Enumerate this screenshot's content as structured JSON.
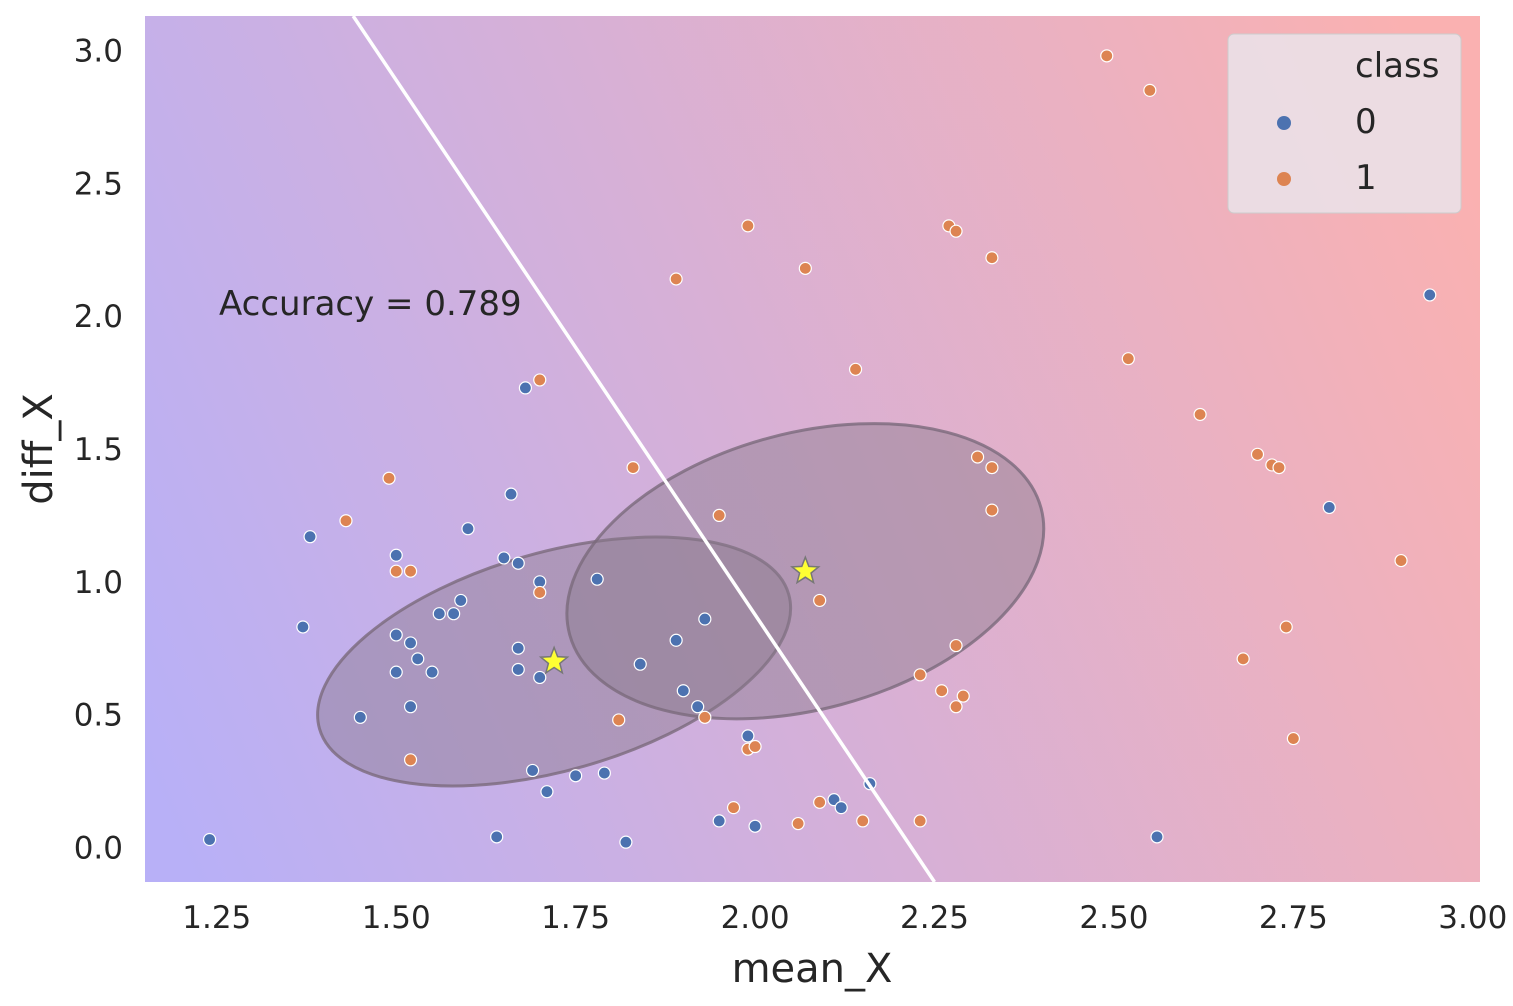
{
  "chart_data": {
    "type": "scatter",
    "xlabel": "mean_X",
    "ylabel": "diff_X",
    "xlim": [
      1.15,
      3.01
    ],
    "ylim": [
      -0.13,
      3.13
    ],
    "xticks": [
      "1.25",
      "1.50",
      "1.75",
      "2.00",
      "2.25",
      "2.50",
      "2.75",
      "3.00"
    ],
    "yticks": [
      "0.0",
      "0.5",
      "1.0",
      "1.5",
      "2.0",
      "2.5",
      "3.0"
    ],
    "grid": false,
    "background": {
      "left_color": "#b8b0f7",
      "right_color": "#fab1b1",
      "type": "diagonal-gradient"
    },
    "annotation": "Accuracy = 0.789",
    "decision_boundary": {
      "color": "#ffffff",
      "points": [
        [
          1.44,
          3.13
        ],
        [
          2.25,
          -0.13
        ]
      ]
    },
    "legend": {
      "title": "class",
      "position": "top-right",
      "entries": [
        {
          "label": "0",
          "color": "#4c72b0"
        },
        {
          "label": "1",
          "color": "#dd8452"
        }
      ]
    },
    "centroids": [
      {
        "class": "0",
        "x": 1.72,
        "y": 0.7,
        "marker": "star",
        "color": "#ffff33"
      },
      {
        "class": "1",
        "x": 2.07,
        "y": 1.04,
        "marker": "star",
        "color": "#ffff33"
      }
    ],
    "ellipses": [
      {
        "class": "0",
        "center": [
          1.72,
          0.7
        ],
        "rx": 0.34,
        "ry": 0.41,
        "angle_deg": 16
      },
      {
        "class": "1",
        "center": [
          2.07,
          1.04
        ],
        "rx": 0.34,
        "ry": 0.52,
        "angle_deg": 15
      }
    ],
    "series": [
      {
        "name": "0",
        "color": "#4c72b0",
        "points": [
          [
            1.24,
            0.03
          ],
          [
            1.37,
            0.83
          ],
          [
            1.38,
            1.17
          ],
          [
            1.45,
            0.49
          ],
          [
            1.5,
            1.1
          ],
          [
            1.5,
            0.8
          ],
          [
            1.5,
            0.66
          ],
          [
            1.52,
            0.77
          ],
          [
            1.52,
            0.53
          ],
          [
            1.53,
            0.71
          ],
          [
            1.55,
            0.66
          ],
          [
            1.56,
            0.88
          ],
          [
            1.58,
            0.88
          ],
          [
            1.59,
            0.93
          ],
          [
            1.6,
            1.2
          ],
          [
            1.64,
            0.04
          ],
          [
            1.65,
            1.09
          ],
          [
            1.66,
            1.33
          ],
          [
            1.67,
            1.07
          ],
          [
            1.67,
            0.67
          ],
          [
            1.67,
            0.75
          ],
          [
            1.68,
            1.73
          ],
          [
            1.69,
            0.29
          ],
          [
            1.7,
            1.0
          ],
          [
            1.7,
            0.64
          ],
          [
            1.71,
            0.21
          ],
          [
            1.75,
            0.27
          ],
          [
            1.78,
            1.01
          ],
          [
            1.79,
            0.28
          ],
          [
            1.82,
            0.02
          ],
          [
            1.84,
            0.69
          ],
          [
            1.89,
            0.78
          ],
          [
            1.9,
            0.59
          ],
          [
            1.92,
            0.53
          ],
          [
            1.93,
            0.86
          ],
          [
            1.95,
            0.1
          ],
          [
            1.99,
            0.42
          ],
          [
            2.0,
            0.08
          ],
          [
            2.11,
            0.18
          ],
          [
            2.12,
            0.15
          ],
          [
            2.16,
            0.24
          ],
          [
            2.56,
            0.04
          ],
          [
            2.8,
            1.28
          ],
          [
            2.94,
            2.08
          ]
        ]
      },
      {
        "name": "1",
        "color": "#dd8452",
        "points": [
          [
            1.43,
            1.23
          ],
          [
            1.49,
            1.39
          ],
          [
            1.5,
            1.04
          ],
          [
            1.52,
            1.04
          ],
          [
            1.52,
            0.33
          ],
          [
            1.7,
            1.76
          ],
          [
            1.7,
            0.96
          ],
          [
            1.81,
            0.48
          ],
          [
            1.83,
            1.43
          ],
          [
            1.89,
            2.14
          ],
          [
            1.93,
            0.49
          ],
          [
            1.95,
            1.25
          ],
          [
            1.97,
            0.15
          ],
          [
            1.99,
            2.34
          ],
          [
            1.99,
            0.37
          ],
          [
            2.0,
            0.38
          ],
          [
            2.06,
            0.09
          ],
          [
            2.07,
            2.18
          ],
          [
            2.09,
            0.93
          ],
          [
            2.09,
            0.17
          ],
          [
            2.14,
            1.8
          ],
          [
            2.15,
            0.1
          ],
          [
            2.23,
            0.65
          ],
          [
            2.23,
            0.1
          ],
          [
            2.26,
            0.59
          ],
          [
            2.27,
            2.34
          ],
          [
            2.28,
            2.32
          ],
          [
            2.28,
            0.76
          ],
          [
            2.28,
            0.53
          ],
          [
            2.29,
            0.57
          ],
          [
            2.31,
            1.47
          ],
          [
            2.33,
            1.43
          ],
          [
            2.33,
            1.27
          ],
          [
            2.33,
            2.22
          ],
          [
            2.49,
            2.98
          ],
          [
            2.52,
            1.84
          ],
          [
            2.55,
            2.85
          ],
          [
            2.62,
            1.63
          ],
          [
            2.68,
            0.71
          ],
          [
            2.7,
            1.48
          ],
          [
            2.72,
            1.44
          ],
          [
            2.73,
            1.43
          ],
          [
            2.74,
            0.83
          ],
          [
            2.75,
            0.41
          ],
          [
            2.9,
            1.08
          ]
        ]
      }
    ]
  }
}
